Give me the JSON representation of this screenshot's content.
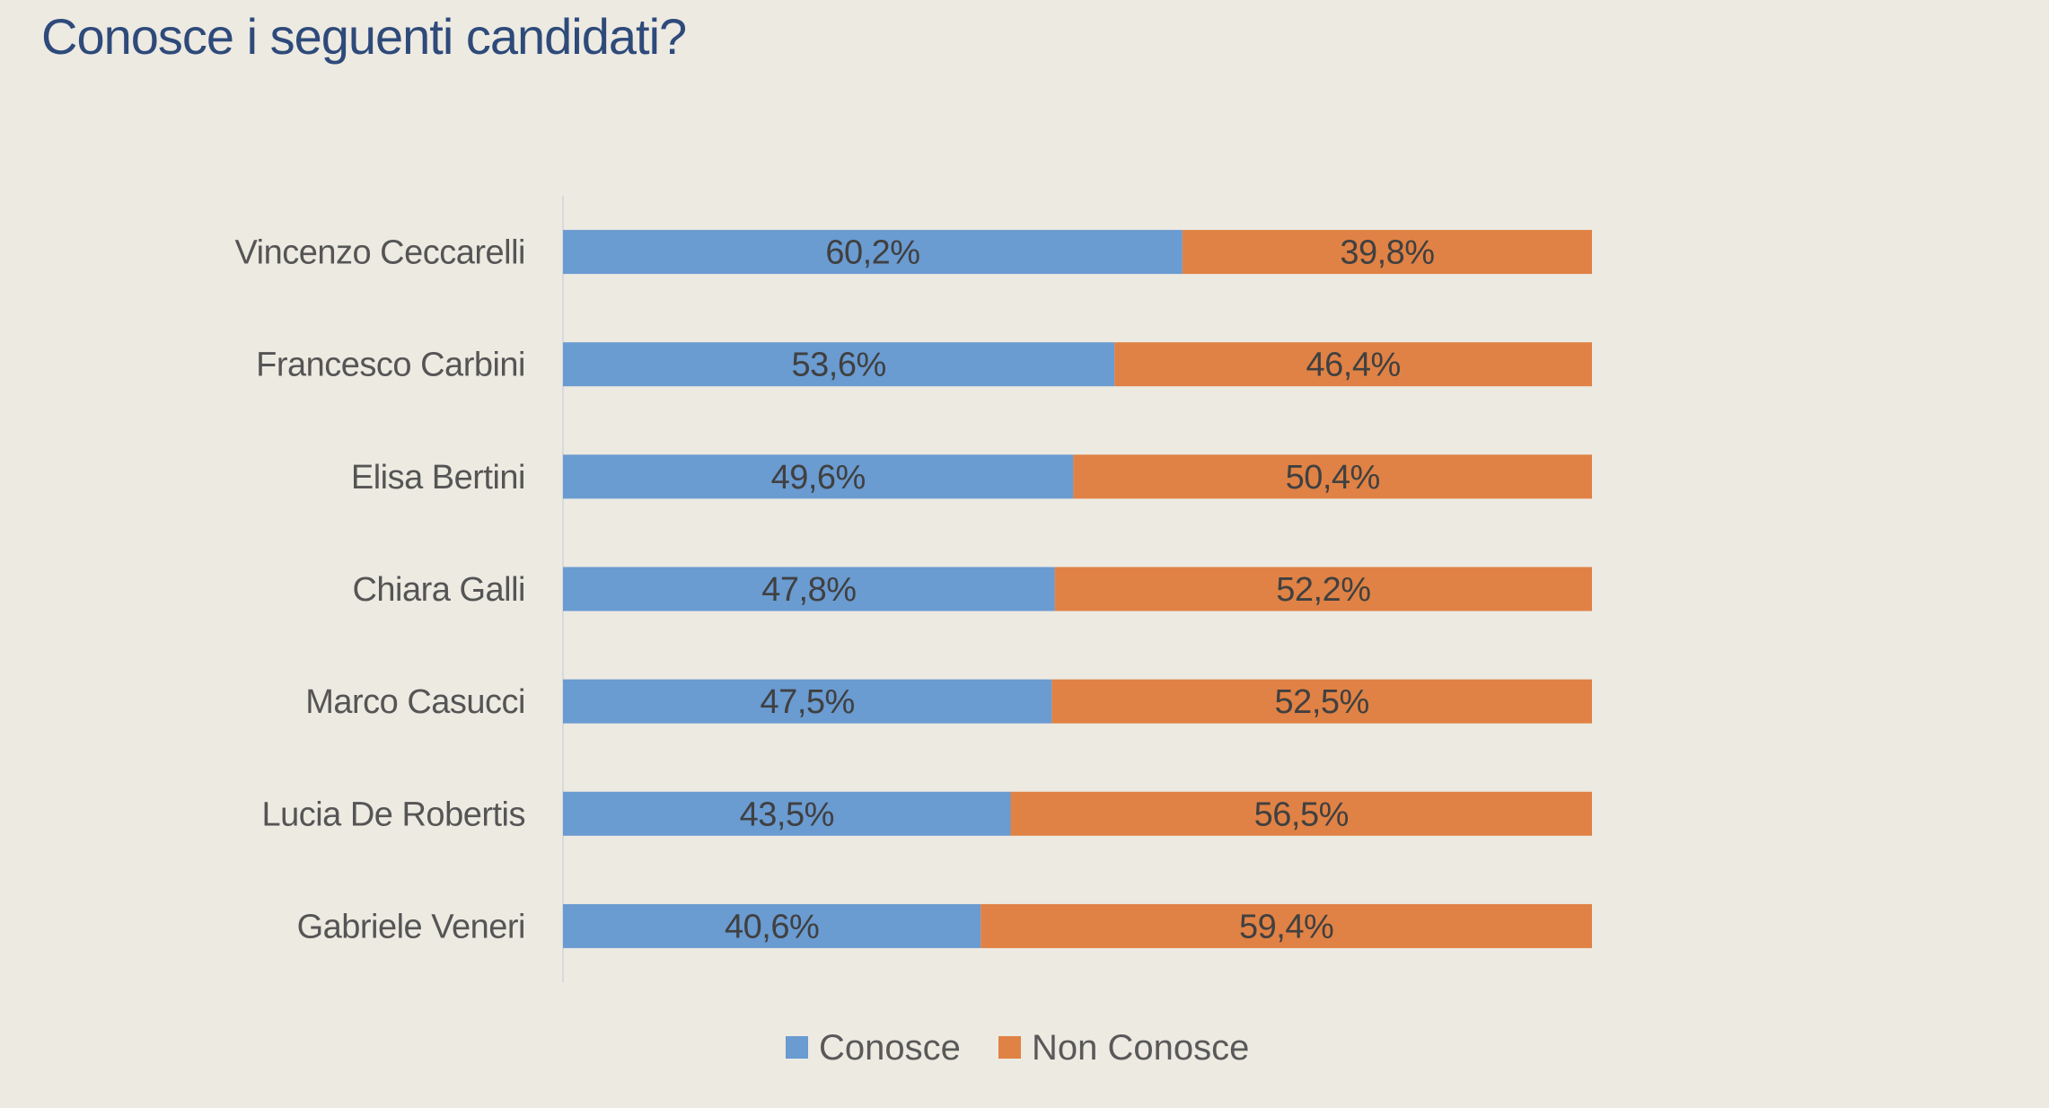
{
  "page": {
    "title": "Conosce i seguenti candidati?"
  },
  "chart_data": {
    "type": "bar",
    "orientation": "horizontal",
    "stacked": "percent",
    "title": "Conosce i seguenti candidati?",
    "xlabel": "",
    "ylabel": "",
    "xlim": [
      0,
      100
    ],
    "grid": false,
    "legend_position": "bottom",
    "categories": [
      "Vincenzo Ceccarelli",
      "Francesco Carbini",
      "Elisa Bertini",
      "Chiara Galli",
      "Marco Casucci",
      "Lucia De Robertis",
      "Gabriele Veneri"
    ],
    "series": [
      {
        "name": "Conosce",
        "color": "#6A9BD1",
        "values": [
          60.2,
          53.6,
          49.6,
          47.8,
          47.5,
          43.5,
          40.6
        ],
        "labels": [
          "60,2%",
          "53,6%",
          "49,6%",
          "47,8%",
          "47,5%",
          "43,5%",
          "40,6%"
        ]
      },
      {
        "name": "Non Conosce",
        "color": "#E08245",
        "values": [
          39.8,
          46.4,
          50.4,
          52.2,
          52.5,
          56.5,
          59.4
        ],
        "labels": [
          "39,8%",
          "46,4%",
          "50,4%",
          "52,2%",
          "52,5%",
          "56,5%",
          "59,4%"
        ]
      }
    ],
    "colors": {
      "background": "#EDEAE2",
      "axis": "#D9D9D9",
      "title": "#2E4A7A"
    }
  }
}
